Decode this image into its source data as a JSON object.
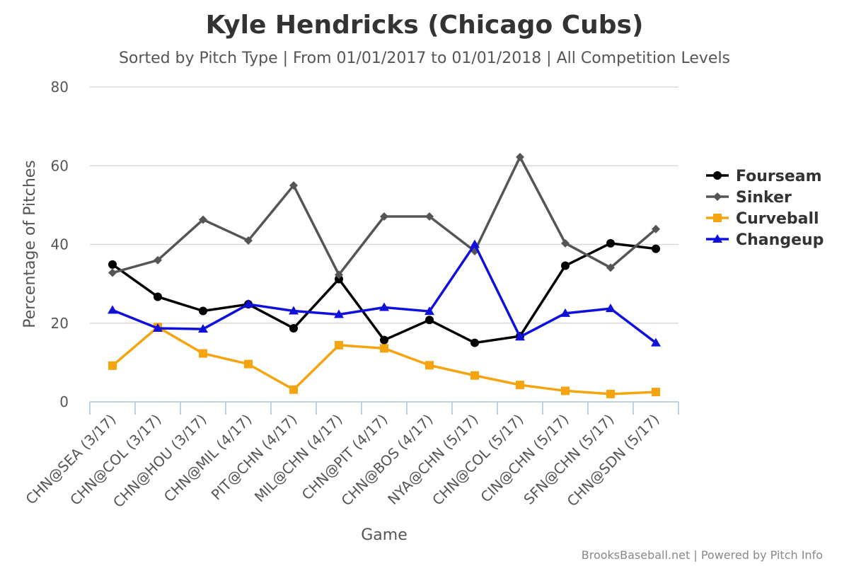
{
  "chart_data": {
    "type": "line",
    "title": "Kyle Hendricks (Chicago Cubs)",
    "subtitle": "Sorted by Pitch Type | From 01/01/2017 to 01/01/2018 | All Competition Levels",
    "xlabel": "Game",
    "ylabel": "Percentage of Pitches",
    "ylim": [
      0,
      80
    ],
    "yticks": [
      0,
      20,
      40,
      60,
      80
    ],
    "grid": true,
    "legend_position": "right",
    "categories": [
      "CHN@SEA (3/17)",
      "CHN@COL (3/17)",
      "CHN@HOU (3/17)",
      "CHN@MIL (4/17)",
      "PIT@CHN (4/17)",
      "MIL@CHN (4/17)",
      "CHN@PIT (4/17)",
      "CHN@BOS (4/17)",
      "NYA@CHN (5/17)",
      "CHN@COL (5/17)",
      "CIN@CHN (5/17)",
      "SFN@CHN (5/17)",
      "CHN@SDN (5/17)"
    ],
    "series": [
      {
        "name": "Fourseam",
        "color": "#000000",
        "marker": "circle",
        "values": [
          34.9,
          26.7,
          23.1,
          24.8,
          18.7,
          31.2,
          15.7,
          20.8,
          15.0,
          16.7,
          34.6,
          40.3,
          38.9
        ]
      },
      {
        "name": "Sinker",
        "color": "#555555",
        "marker": "diamond",
        "values": [
          32.8,
          36.0,
          46.3,
          41.0,
          55.0,
          32.3,
          47.1,
          47.1,
          38.3,
          62.2,
          40.3,
          34.1,
          43.9
        ]
      },
      {
        "name": "Curveball",
        "color": "#f5a30f",
        "marker": "square",
        "values": [
          9.2,
          19.0,
          12.3,
          9.6,
          3.1,
          14.4,
          13.6,
          9.3,
          6.7,
          4.3,
          2.8,
          2.0,
          2.5
        ]
      },
      {
        "name": "Changeup",
        "color": "#1010dd",
        "marker": "triangle",
        "values": [
          23.3,
          18.7,
          18.5,
          24.8,
          23.1,
          22.2,
          24.0,
          23.0,
          40.0,
          16.5,
          22.5,
          23.7,
          15.0
        ]
      }
    ]
  },
  "credits": "BrooksBaseball.net | Powered by Pitch Info"
}
